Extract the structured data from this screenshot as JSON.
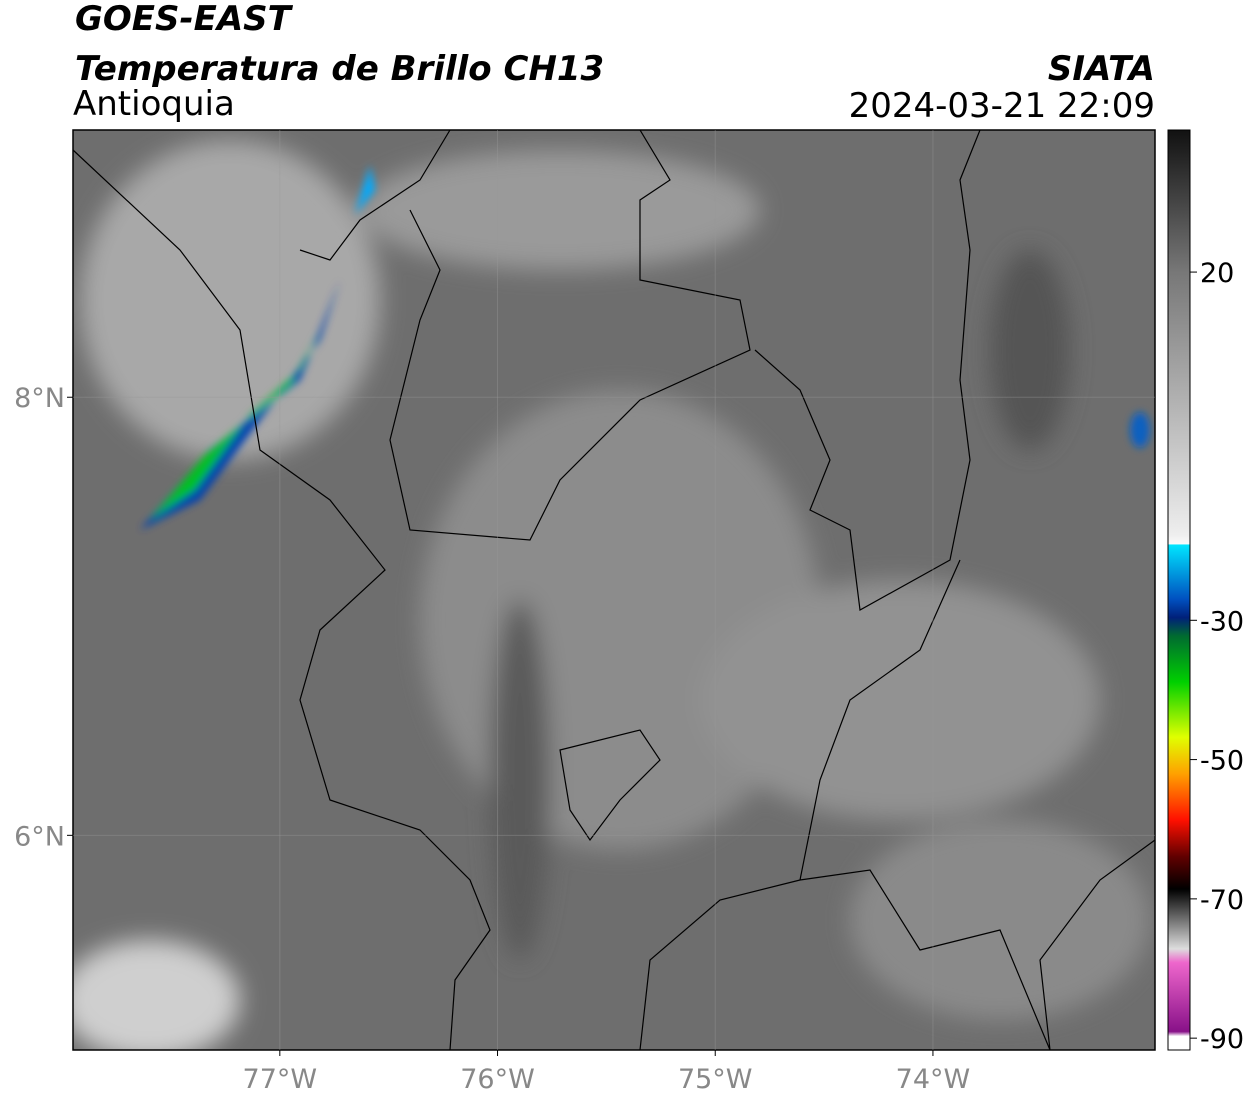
{
  "header": {
    "title": "GOES-EAST",
    "subtitle": "Temperatura de Brillo CH13",
    "region": "Antioquia",
    "source": "SIATA",
    "datetime": "2024-03-21 22:09"
  },
  "map": {
    "xlim": [
      -77.95,
      -72.98
    ],
    "ylim": [
      5.02,
      9.22
    ],
    "xticks": [
      {
        "value": -77,
        "label": "77°W"
      },
      {
        "value": -76,
        "label": "76°W"
      },
      {
        "value": -75,
        "label": "75°W"
      },
      {
        "value": -74,
        "label": "74°W"
      }
    ],
    "yticks": [
      {
        "value": 6,
        "label": "6°N"
      },
      {
        "value": 8,
        "label": "8°N"
      }
    ],
    "grid": true
  },
  "colorbar": {
    "lim": [
      -91.7,
      40.4
    ],
    "ticks": [
      20,
      -30,
      -50,
      -70,
      -90
    ]
  }
}
